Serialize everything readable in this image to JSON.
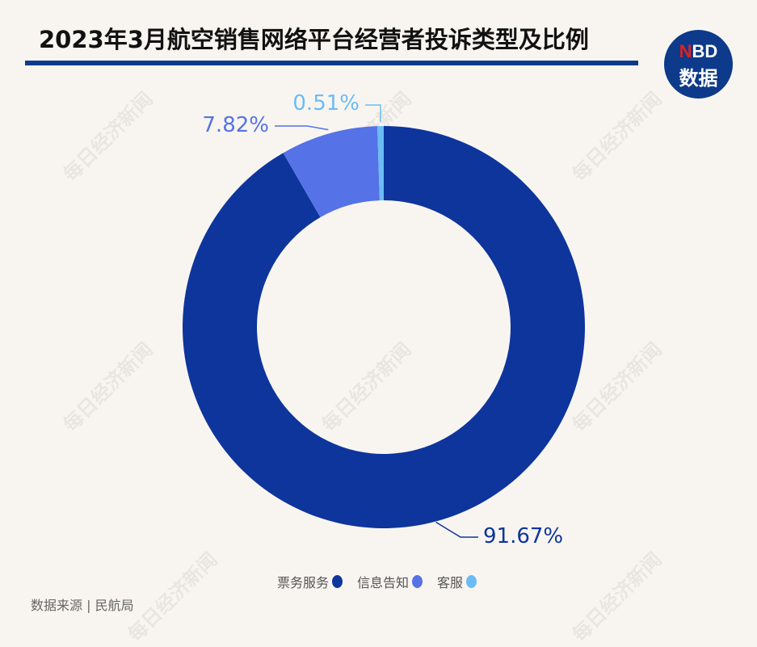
{
  "title": "2023年3月航空销售网络平台经营者投诉类型及比例",
  "logo": {
    "brand_n": "N",
    "brand_bd": "BD",
    "sub": "数据"
  },
  "watermark": "每日经济新闻",
  "source": "数据来源 | 民航局",
  "chart_data": {
    "type": "pie",
    "donut": true,
    "start": "top, clockwise",
    "categories": [
      "票务服务",
      "信息告知",
      "客服"
    ],
    "values": [
      91.67,
      7.82,
      0.51
    ],
    "labels": [
      "91.67%",
      "7.82%",
      "0.51%"
    ],
    "colors": [
      "#0d359c",
      "#5572e6",
      "#6bbcf5"
    ],
    "legend_position": "bottom"
  }
}
